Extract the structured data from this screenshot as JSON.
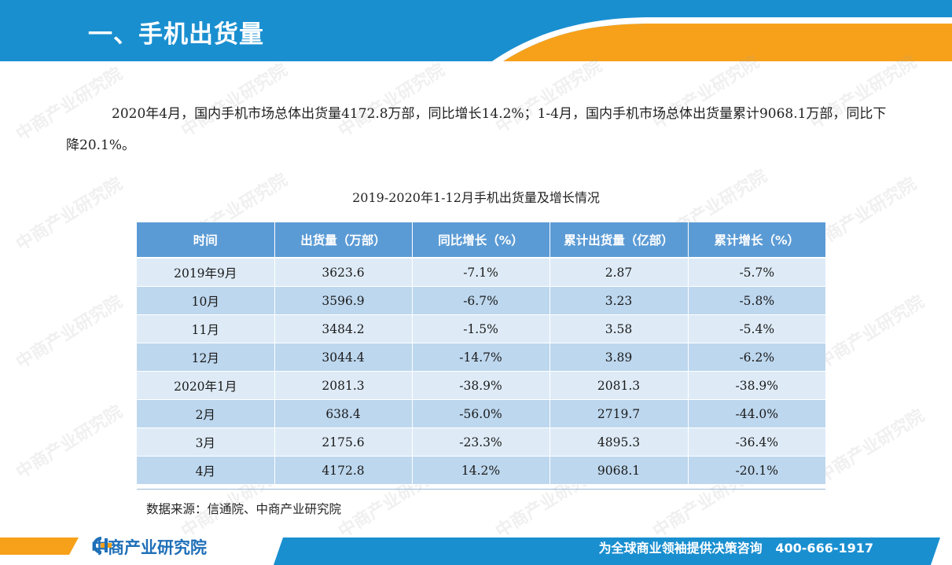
{
  "header": {
    "title": "一、手机出货量",
    "band_color": "#1a8fd0",
    "accent_color": "#f7a11a"
  },
  "intro": {
    "text": "2020年4月，国内手机市场总体出货量4172.8万部，同比增长14.2%；1-4月，国内手机市场总体出货量累计9068.1万部，同比下降20.1%。"
  },
  "table": {
    "title": "2019-2020年1-12月手机出货量及增长情况",
    "headers": [
      "时间",
      "出货量（万部）",
      "同比增长（%）",
      "累计出货量（亿部）",
      "累计增长（%）"
    ],
    "rows": [
      [
        "2019年9月",
        "3623.6",
        "-7.1%",
        "2.87",
        "-5.7%"
      ],
      [
        "10月",
        "3596.9",
        "-6.7%",
        "3.23",
        "-5.8%"
      ],
      [
        "11月",
        "3484.2",
        "-1.5%",
        "3.58",
        "-5.4%"
      ],
      [
        "12月",
        "3044.4",
        "-14.7%",
        "3.89",
        "-6.2%"
      ],
      [
        "2020年1月",
        "2081.3",
        "-38.9%",
        "2081.3",
        "-38.9%"
      ],
      [
        "2月",
        "638.4",
        "-56.0%",
        "2719.7",
        "-44.0%"
      ],
      [
        "3月",
        "2175.6",
        "-23.3%",
        "4895.3",
        "-36.4%"
      ],
      [
        "4月",
        "4172.8",
        "14.2%",
        "9068.1",
        "-20.1%"
      ]
    ],
    "header_color": "#5b9bd5",
    "row_color_light": "#deebf7",
    "row_color_dark": "#bdd7ee"
  },
  "source": "数据来源：信通院、中商产业研究院",
  "footer": {
    "brand": "中商产业研究院",
    "slogan": "为全球商业领袖提供决策咨询",
    "phone": "400-666-1917"
  },
  "watermark": "中商产业研究院"
}
